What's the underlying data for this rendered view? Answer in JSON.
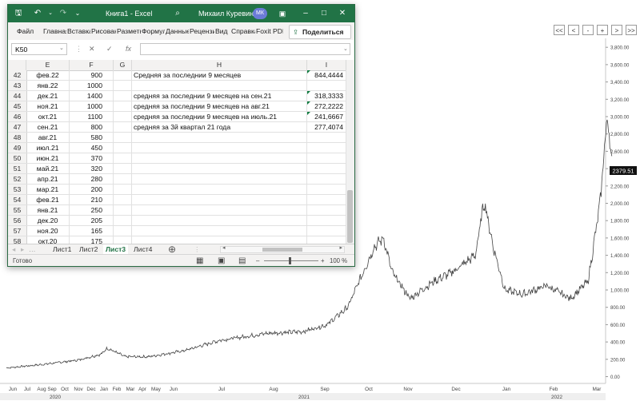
{
  "chart": {
    "nav_buttons": [
      "<<",
      "<",
      "-",
      "+",
      ">",
      ">>"
    ],
    "price_label": "2379.51",
    "y_ticks": [
      "3,800.00",
      "3,600.00",
      "3,400.00",
      "3,200.00",
      "3,000.00",
      "2,800.00",
      "2,600.00",
      "2,400.00",
      "2,200.00",
      "2,000.00",
      "1,800.00",
      "1,600.00",
      "1,400.00",
      "1,200.00",
      "1,000.00",
      "800.00",
      "600.00",
      "400.00",
      "200.00",
      "0.00"
    ],
    "x_months": [
      "Jun",
      "Jul",
      "Aug",
      "Sep",
      "Oct",
      "Nov",
      "Dec",
      "Jan",
      "Feb",
      "Mar",
      "Apr",
      "May",
      "Jun",
      "Jul",
      "Aug",
      "Sep",
      "Oct",
      "Nov",
      "Dec",
      "Jan",
      "Feb",
      "Mar"
    ],
    "x_years": [
      "2020",
      "2021",
      "2022"
    ],
    "colors": {
      "line": "#444444",
      "axis": "#c8c8c8",
      "label_bg": "#111111"
    }
  },
  "chart_data": {
    "type": "line",
    "ylim": [
      0,
      3850
    ],
    "series": [
      {
        "values": [
          [
            0.0,
            100
          ],
          [
            0.06,
            140
          ],
          [
            0.12,
            190
          ],
          [
            0.16,
            260
          ],
          [
            0.17,
            330
          ],
          [
            0.2,
            230
          ],
          [
            0.24,
            230
          ],
          [
            0.3,
            300
          ],
          [
            0.36,
            420
          ],
          [
            0.44,
            500
          ],
          [
            0.5,
            520
          ],
          [
            0.54,
            600
          ],
          [
            0.575,
            800
          ],
          [
            0.62,
            1500
          ],
          [
            0.635,
            1600
          ],
          [
            0.65,
            1200
          ],
          [
            0.68,
            900
          ],
          [
            0.72,
            1100
          ],
          [
            0.75,
            1200
          ],
          [
            0.79,
            1400
          ],
          [
            0.805,
            2030
          ],
          [
            0.82,
            1500
          ],
          [
            0.84,
            1000
          ],
          [
            0.87,
            950
          ],
          [
            0.91,
            1050
          ],
          [
            0.95,
            900
          ],
          [
            0.98,
            1100
          ],
          [
            1.0,
            2000
          ],
          [
            1.012,
            3000
          ],
          [
            1.02,
            2500
          ]
        ]
      }
    ]
  },
  "excel": {
    "title": "Книга1 - Excel",
    "user": "Михаил Куревин",
    "avatar": "МК",
    "tabs": [
      "Файл",
      "Главная",
      "Вставка",
      "Рисование",
      "Разметка",
      "Формулы",
      "Данные",
      "Рецензирование",
      "Вид",
      "Справка",
      "Foxit PDF"
    ],
    "share_label": "Поделиться",
    "name_box": "K50",
    "fx": "fx",
    "columns": [
      "E",
      "F",
      "G",
      "H",
      "I"
    ],
    "rows": [
      {
        "n": "42",
        "e": "фев.22",
        "f": "900",
        "h": "Средняя за последнии 9 месяцев",
        "i": "844,4444",
        "tri": true
      },
      {
        "n": "43",
        "e": "янв.22",
        "f": "1000",
        "h": "",
        "i": "",
        "tri": false
      },
      {
        "n": "44",
        "e": "дек.21",
        "f": "1400",
        "h": "средняя за последнии 9 месяцев на сен.21",
        "i": "318,3333",
        "tri": true
      },
      {
        "n": "45",
        "e": "ноя.21",
        "f": "1000",
        "h": "средняя за последнии 9 месяцев на авг.21",
        "i": "272,2222",
        "tri": true
      },
      {
        "n": "46",
        "e": "окт.21",
        "f": "1100",
        "h": "средняя за последнии 9 месяцев на июль.21",
        "i": "241,6667",
        "tri": true
      },
      {
        "n": "47",
        "e": "сен.21",
        "f": "800",
        "h": "средняя за 3й квартал 21 года",
        "i": "277,4074",
        "tri": false
      },
      {
        "n": "48",
        "e": "авг.21",
        "f": "580",
        "h": "",
        "i": "",
        "tri": false
      },
      {
        "n": "49",
        "e": "июл.21",
        "f": "450",
        "h": "",
        "i": "",
        "tri": false
      },
      {
        "n": "50",
        "e": "июн.21",
        "f": "370",
        "h": "",
        "i": "",
        "tri": false
      },
      {
        "n": "51",
        "e": "май.21",
        "f": "320",
        "h": "",
        "i": "",
        "tri": false
      },
      {
        "n": "52",
        "e": "апр.21",
        "f": "280",
        "h": "",
        "i": "",
        "tri": false
      },
      {
        "n": "53",
        "e": "мар.21",
        "f": "200",
        "h": "",
        "i": "",
        "tri": false
      },
      {
        "n": "54",
        "e": "фев.21",
        "f": "210",
        "h": "",
        "i": "",
        "tri": false
      },
      {
        "n": "55",
        "e": "янв.21",
        "f": "250",
        "h": "",
        "i": "",
        "tri": false
      },
      {
        "n": "56",
        "e": "дек.20",
        "f": "205",
        "h": "",
        "i": "",
        "tri": false
      },
      {
        "n": "57",
        "e": "ноя.20",
        "f": "165",
        "h": "",
        "i": "",
        "tri": false
      },
      {
        "n": "58",
        "e": "окт.20",
        "f": "175",
        "h": "",
        "i": "",
        "tri": false
      }
    ],
    "sheets": [
      "Лист1",
      "Лист2",
      "Лист3",
      "Лист4"
    ],
    "active_sheet": "Лист3",
    "status_ready": "Готово",
    "zoom": "100 %"
  }
}
